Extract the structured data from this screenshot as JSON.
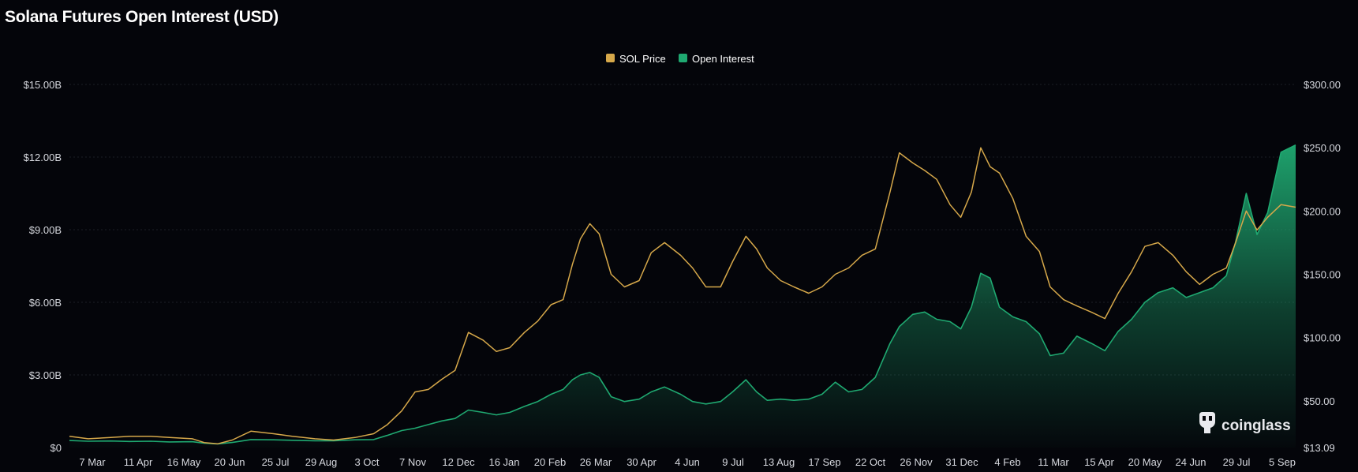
{
  "title": "Solana Futures Open Interest (USD)",
  "watermark": {
    "text": "coinglass",
    "icon": "coinglass-logo-icon"
  },
  "colors": {
    "price": "#d6a84a",
    "open_interest": "#1fa971",
    "grid": "#1b1e26",
    "background": "#04050a"
  },
  "chart_data": {
    "type": "area",
    "title": "Solana Futures Open Interest (USD)",
    "legend": {
      "placement": "top-center",
      "items": [
        "SOL Price",
        "Open Interest"
      ]
    },
    "grid": true,
    "x": [
      "2023-03-01",
      "2023-03-15",
      "2023-04-01",
      "2023-04-15",
      "2023-05-01",
      "2023-05-15",
      "2023-06-01",
      "2023-06-10",
      "2023-06-20",
      "2023-07-01",
      "2023-07-15",
      "2023-08-01",
      "2023-08-15",
      "2023-09-01",
      "2023-09-15",
      "2023-10-01",
      "2023-10-15",
      "2023-10-25",
      "2023-11-05",
      "2023-11-15",
      "2023-11-25",
      "2023-12-05",
      "2023-12-15",
      "2023-12-25",
      "2024-01-05",
      "2024-01-15",
      "2024-01-25",
      "2024-02-05",
      "2024-02-15",
      "2024-02-25",
      "2024-03-05",
      "2024-03-12",
      "2024-03-18",
      "2024-03-25",
      "2024-04-01",
      "2024-04-10",
      "2024-04-20",
      "2024-05-01",
      "2024-05-10",
      "2024-05-20",
      "2024-06-01",
      "2024-06-10",
      "2024-06-20",
      "2024-07-01",
      "2024-07-10",
      "2024-07-20",
      "2024-07-28",
      "2024-08-05",
      "2024-08-15",
      "2024-08-25",
      "2024-09-05",
      "2024-09-15",
      "2024-09-25",
      "2024-10-05",
      "2024-10-15",
      "2024-10-25",
      "2024-11-05",
      "2024-11-12",
      "2024-11-22",
      "2024-12-01",
      "2024-12-10",
      "2024-12-20",
      "2024-12-28",
      "2025-01-05",
      "2025-01-12",
      "2025-01-19",
      "2025-01-26",
      "2025-02-05",
      "2025-02-15",
      "2025-02-25",
      "2025-03-05",
      "2025-03-15",
      "2025-03-25",
      "2025-04-05",
      "2025-04-15",
      "2025-04-25",
      "2025-05-05",
      "2025-05-15",
      "2025-05-25",
      "2025-06-05",
      "2025-06-15",
      "2025-06-25",
      "2025-07-05",
      "2025-07-15",
      "2025-07-22",
      "2025-07-30",
      "2025-08-07",
      "2025-08-15",
      "2025-08-25",
      "2025-09-05"
    ],
    "x_tick_labels": [
      "7 Mar",
      "11 Apr",
      "16 May",
      "20 Jun",
      "25 Jul",
      "29 Aug",
      "3 Oct",
      "7 Nov",
      "12 Dec",
      "16 Jan",
      "20 Feb",
      "26 Mar",
      "30 Apr",
      "4 Jun",
      "9 Jul",
      "13 Aug",
      "17 Sep",
      "22 Oct",
      "26 Nov",
      "31 Dec",
      "4 Feb",
      "11 Mar",
      "15 Apr",
      "20 May",
      "24 Jun",
      "29 Jul",
      "5 Sep"
    ],
    "y_left": {
      "label": "",
      "range": [
        0,
        15000000000
      ],
      "ticks": [
        "$0",
        "$3.00B",
        "$6.00B",
        "$9.00B",
        "$12.00B",
        "$15.00B"
      ]
    },
    "y_right": {
      "label": "",
      "range": [
        13.09,
        300
      ],
      "ticks": [
        "$13.09",
        "$50.00",
        "$100.00",
        "$150.00",
        "$200.00",
        "$250.00",
        "$300.00"
      ]
    },
    "series": [
      {
        "name": "SOL Price",
        "axis": "right",
        "values": [
          22,
          20,
          21,
          22,
          22,
          21,
          20,
          17,
          16,
          19,
          26,
          24,
          22,
          20,
          19,
          21,
          24,
          31,
          42,
          57,
          59,
          67,
          74,
          104,
          98,
          89,
          92,
          104,
          113,
          126,
          130,
          158,
          178,
          190,
          182,
          150,
          140,
          145,
          167,
          175,
          165,
          155,
          140,
          140,
          160,
          180,
          170,
          155,
          145,
          140,
          135,
          140,
          150,
          155,
          165,
          170,
          215,
          246,
          238,
          232,
          225,
          205,
          195,
          215,
          250,
          235,
          230,
          210,
          180,
          168,
          140,
          130,
          125,
          120,
          115,
          135,
          152,
          172,
          175,
          165,
          152,
          142,
          150,
          155,
          175,
          200,
          185,
          195,
          205,
          203
        ]
      },
      {
        "name": "Open Interest",
        "axis": "left",
        "values": [
          290000000,
          260000000,
          270000000,
          250000000,
          260000000,
          230000000,
          240000000,
          180000000,
          150000000,
          210000000,
          330000000,
          320000000,
          300000000,
          280000000,
          280000000,
          320000000,
          330000000,
          500000000,
          700000000,
          800000000,
          950000000,
          1100000000,
          1200000000,
          1550000000,
          1450000000,
          1350000000,
          1450000000,
          1700000000,
          1900000000,
          2200000000,
          2400000000,
          2800000000,
          3000000000,
          3100000000,
          2900000000,
          2100000000,
          1900000000,
          2000000000,
          2300000000,
          2500000000,
          2200000000,
          1900000000,
          1800000000,
          1900000000,
          2300000000,
          2800000000,
          2300000000,
          1950000000,
          2000000000,
          1950000000,
          2000000000,
          2200000000,
          2700000000,
          2300000000,
          2400000000,
          2900000000,
          4300000000,
          5000000000,
          5500000000,
          5600000000,
          5300000000,
          5200000000,
          4900000000,
          5800000000,
          7200000000,
          7000000000,
          5800000000,
          5400000000,
          5200000000,
          4700000000,
          3800000000,
          3900000000,
          4600000000,
          4300000000,
          4000000000,
          4800000000,
          5300000000,
          6000000000,
          6400000000,
          6600000000,
          6200000000,
          6400000000,
          6600000000,
          7100000000,
          8500000000,
          10500000000,
          8800000000,
          9700000000,
          12200000000,
          12500000000
        ]
      }
    ]
  }
}
